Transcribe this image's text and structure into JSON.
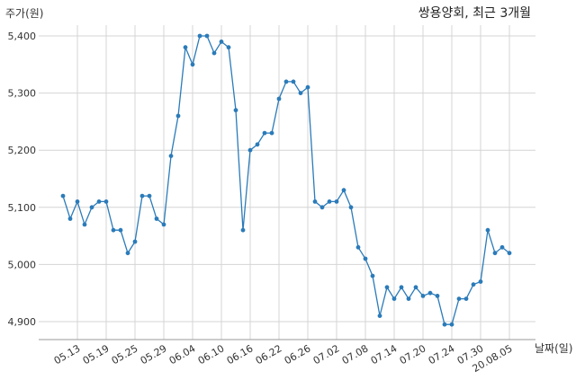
{
  "chart_data": {
    "type": "line",
    "title": "쌍용양회, 최근 3개월",
    "ylabel": "주가(원)",
    "xlabel": "날짜(일)",
    "ylim": [
      4870,
      5410
    ],
    "y_ticks": [
      4900,
      5000,
      5100,
      5200,
      5300,
      5400
    ],
    "y_tick_labels": [
      "4,900",
      "5,000",
      "5,100",
      "5,200",
      "5,300",
      "5,400"
    ],
    "x_ticks": [
      {
        "i": 2,
        "label": "05.13"
      },
      {
        "i": 6,
        "label": "05.19"
      },
      {
        "i": 10,
        "label": "05.25"
      },
      {
        "i": 14,
        "label": "05.29"
      },
      {
        "i": 18,
        "label": "06.04"
      },
      {
        "i": 22,
        "label": "06.10"
      },
      {
        "i": 26,
        "label": "06.16"
      },
      {
        "i": 30,
        "label": "06.22"
      },
      {
        "i": 34,
        "label": "06.26"
      },
      {
        "i": 38,
        "label": "07.02"
      },
      {
        "i": 42,
        "label": "07.08"
      },
      {
        "i": 46,
        "label": "07.14"
      },
      {
        "i": 50,
        "label": "07.20"
      },
      {
        "i": 54,
        "label": "07.24"
      },
      {
        "i": 58,
        "label": "07.30"
      },
      {
        "i": 62,
        "label": "20.08.05"
      }
    ],
    "grid": true,
    "color": "#2b7bb9",
    "series": [
      {
        "values": [
          5120,
          5080,
          5110,
          5070,
          5100,
          5110,
          5110,
          5060,
          5060,
          5020,
          5040,
          5120,
          5120,
          5080,
          5070,
          5190,
          5260,
          5380,
          5350,
          5400,
          5400,
          5370,
          5390,
          5380,
          5270,
          5060,
          5200,
          5210,
          5230,
          5230,
          5290,
          5320,
          5320,
          5300,
          5310,
          5110,
          5100,
          5110,
          5110,
          5130,
          5100,
          5030,
          5010,
          4980,
          4910,
          4960,
          4940,
          4960,
          4940,
          4960,
          4945,
          4950,
          4945,
          4895,
          4895,
          4940,
          4940,
          4965,
          4970,
          5060,
          5020,
          5030,
          5020
        ]
      }
    ]
  }
}
